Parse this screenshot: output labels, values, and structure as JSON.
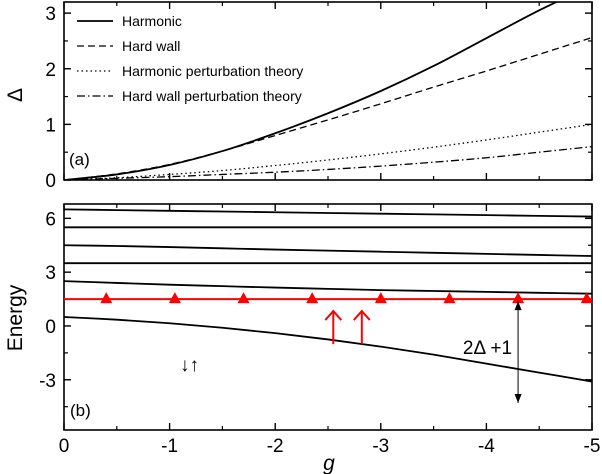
{
  "chart_data": [
    {
      "type": "line",
      "panel_label": "(a)",
      "xlabel": "",
      "ylabel": "Δ",
      "xlim": [
        0,
        -5
      ],
      "ylim": [
        0,
        3.2
      ],
      "yticks": [
        "0",
        "1",
        "2",
        "3"
      ],
      "legend_position": "top-left",
      "x": [
        0,
        -0.5,
        -1,
        -1.5,
        -2,
        -2.5,
        -3,
        -3.5,
        -4,
        -4.5,
        -5
      ],
      "series": [
        {
          "name": "Harmonic",
          "style": "solid",
          "values": [
            0,
            0.1,
            0.27,
            0.52,
            0.84,
            1.2,
            1.6,
            2.05,
            2.55,
            3.05,
            3.5
          ]
        },
        {
          "name": "Hard wall",
          "style": "dashed",
          "values": [
            0,
            0.11,
            0.28,
            0.52,
            0.8,
            1.08,
            1.37,
            1.67,
            1.96,
            2.26,
            2.56
          ]
        },
        {
          "name": "Harmonic perturbation theory",
          "style": "dotted",
          "values": [
            0,
            0.04,
            0.1,
            0.17,
            0.26,
            0.36,
            0.47,
            0.59,
            0.72,
            0.86,
            1.0
          ]
        },
        {
          "name": "Hard wall perturbation theory",
          "style": "dashdot",
          "values": [
            0,
            0.03,
            0.06,
            0.1,
            0.14,
            0.19,
            0.25,
            0.32,
            0.4,
            0.5,
            0.6
          ]
        }
      ]
    },
    {
      "type": "line",
      "panel_label": "(b)",
      "xlabel": "g",
      "ylabel": "Energy",
      "xlim": [
        0,
        -5
      ],
      "ylim": [
        -5.8,
        6.8
      ],
      "xticks": [
        "0",
        "-1",
        "-2",
        "-3",
        "-4",
        "-5"
      ],
      "yticks": [
        "-3",
        "0",
        "3",
        "6"
      ],
      "x": [
        0,
        -0.5,
        -1,
        -1.5,
        -2,
        -2.5,
        -3,
        -3.5,
        -4,
        -4.5,
        -5
      ],
      "series": [
        {
          "style": "solid",
          "values": [
            6.5,
            6.46,
            6.42,
            6.38,
            6.34,
            6.3,
            6.26,
            6.22,
            6.18,
            6.14,
            6.1
          ]
        },
        {
          "style": "solid",
          "values": [
            5.5,
            5.5,
            5.5,
            5.5,
            5.5,
            5.5,
            5.5,
            5.5,
            5.5,
            5.5,
            5.5
          ]
        },
        {
          "style": "solid",
          "values": [
            4.5,
            4.46,
            4.4,
            4.33,
            4.26,
            4.2,
            4.14,
            4.08,
            4.02,
            3.96,
            3.9
          ]
        },
        {
          "style": "solid",
          "values": [
            3.5,
            3.5,
            3.5,
            3.5,
            3.5,
            3.5,
            3.5,
            3.5,
            3.5,
            3.5,
            3.5
          ]
        },
        {
          "style": "solid",
          "values": [
            2.5,
            2.4,
            2.3,
            2.22,
            2.14,
            2.07,
            2.0,
            1.95,
            1.9,
            1.85,
            1.8
          ]
        },
        {
          "style": "solid",
          "values": [
            0.5,
            0.35,
            0.15,
            -0.1,
            -0.4,
            -0.75,
            -1.15,
            -1.6,
            -2.1,
            -2.6,
            -3.1
          ]
        }
      ],
      "red_line": {
        "y": 1.5,
        "color": "#ff0000"
      },
      "triangle_markers": {
        "x": [
          -0.4,
          -1.05,
          -1.7,
          -2.35,
          -3.0,
          -3.65,
          -4.3,
          -4.95
        ],
        "y": 1.5,
        "color": "#ff0000"
      },
      "annotations": {
        "black_spins": "↓↑",
        "red_arrow_x": [
          -2.55,
          -2.82
        ],
        "gap_label": "2Δ +1",
        "gap_x": -4.3,
        "gap_from": 1.5,
        "gap_to": -4.35
      }
    }
  ]
}
